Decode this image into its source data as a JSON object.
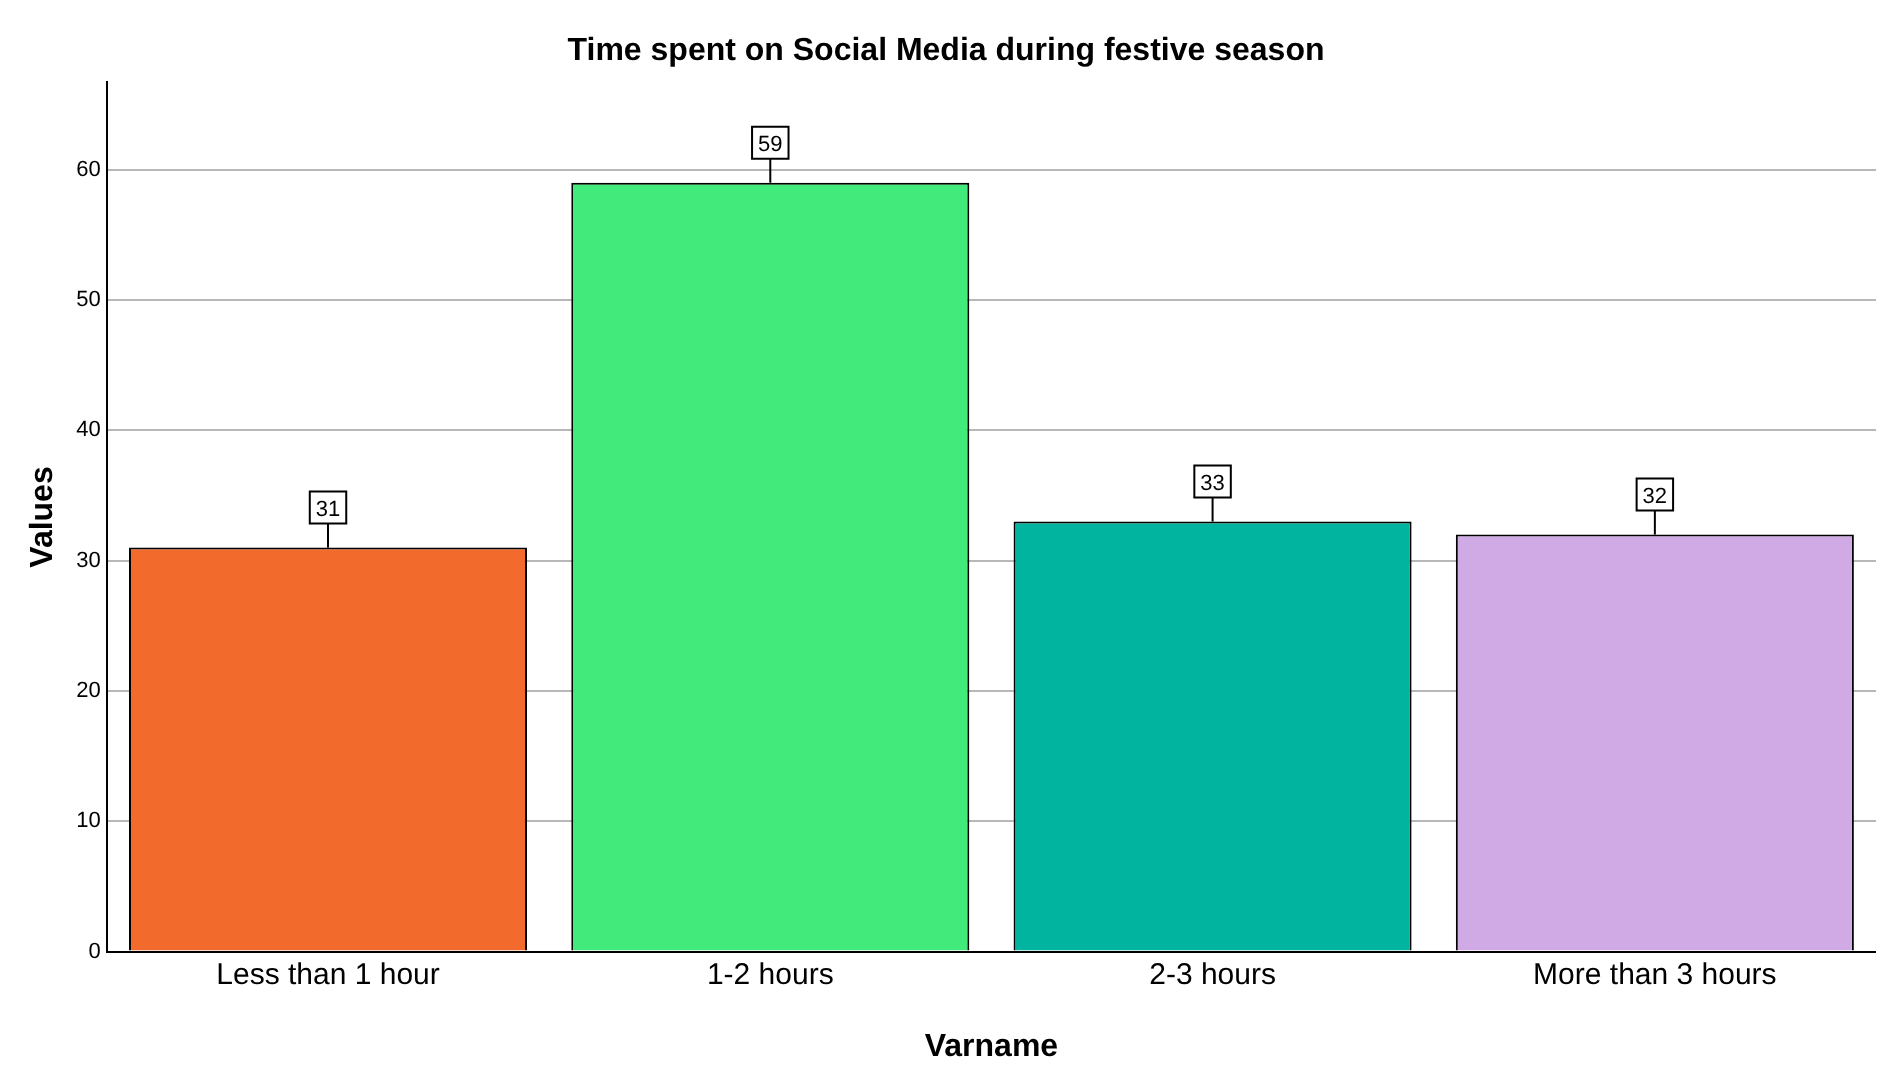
{
  "chart_data": {
    "type": "bar",
    "title": "Time spent on Social Media during festive season",
    "xlabel": "Varname",
    "ylabel": "Values",
    "categories": [
      "Less than 1 hour",
      "1-2 hours",
      "2-3 hours",
      "More than 3 hours"
    ],
    "values": [
      31,
      59,
      33,
      32
    ],
    "colors": [
      "#f26a2c",
      "#41ea7b",
      "#00b4a0",
      "#d0aae4"
    ],
    "ylim": [
      0,
      66.7
    ],
    "yticks": [
      0,
      10,
      20,
      30,
      40,
      50,
      60
    ],
    "grid": "y",
    "data_labels": true,
    "legend": false
  }
}
